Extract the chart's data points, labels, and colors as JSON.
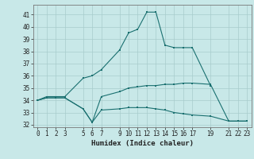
{
  "xlabel": "Humidex (Indice chaleur)",
  "bg_color": "#c8e8e8",
  "grid_color": "#a8cccc",
  "line_color": "#1a7070",
  "xlim": [
    -0.5,
    23.5
  ],
  "ylim": [
    31.8,
    41.8
  ],
  "yticks": [
    32,
    33,
    34,
    35,
    36,
    37,
    38,
    39,
    40,
    41
  ],
  "xticks": [
    0,
    1,
    2,
    3,
    5,
    6,
    7,
    9,
    10,
    11,
    12,
    13,
    14,
    15,
    16,
    17,
    19,
    21,
    22,
    23
  ],
  "line1_x": [
    0,
    1,
    2,
    3,
    5,
    6,
    7,
    9,
    10,
    11,
    12,
    13,
    14,
    15,
    16,
    17,
    19
  ],
  "line1_y": [
    34.0,
    34.3,
    34.3,
    34.3,
    35.8,
    36.0,
    36.5,
    38.1,
    39.5,
    39.8,
    41.2,
    41.2,
    38.5,
    38.3,
    38.3,
    38.3,
    35.2
  ],
  "line2_x": [
    0,
    1,
    2,
    3,
    5,
    6,
    7,
    9,
    10,
    11,
    12,
    13,
    14,
    15,
    16,
    17,
    19,
    21,
    22,
    23
  ],
  "line2_y": [
    34.0,
    34.2,
    34.2,
    34.2,
    33.3,
    32.2,
    34.3,
    34.7,
    35.0,
    35.1,
    35.2,
    35.2,
    35.3,
    35.3,
    35.4,
    35.4,
    35.3,
    32.3,
    32.3,
    32.3
  ],
  "line3_x": [
    0,
    1,
    2,
    3,
    5,
    6,
    7,
    9,
    10,
    11,
    12,
    13,
    14,
    15,
    16,
    17,
    19,
    21,
    22,
    23
  ],
  "line3_y": [
    34.0,
    34.2,
    34.2,
    34.2,
    33.3,
    32.2,
    33.2,
    33.3,
    33.4,
    33.4,
    33.4,
    33.3,
    33.2,
    33.0,
    32.9,
    32.8,
    32.7,
    32.3,
    32.3,
    32.3
  ]
}
